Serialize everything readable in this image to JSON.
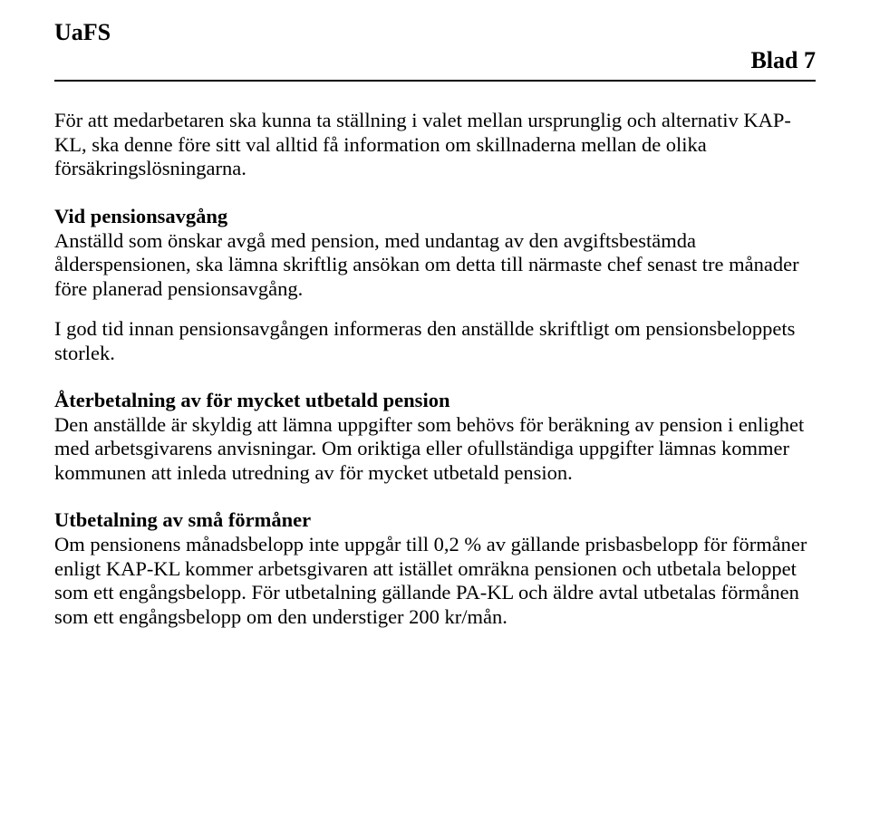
{
  "header": {
    "series": "UaFS",
    "page_label": "Blad 7"
  },
  "paragraphs": {
    "intro": "För att medarbetaren ska kunna ta ställning i valet mellan ursprunglig och alternativ KAP-KL, ska denne före sitt val alltid få information om skillnaderna mellan de olika försäkringslösningarna."
  },
  "sections": {
    "s1": {
      "title": "Vid pensionsavgång",
      "p1": "Anställd som önskar avgå med pension, med undantag av den avgiftsbestämda ålderspensionen, ska lämna skriftlig ansökan om detta till närmaste chef senast tre månader före planerad pensionsavgång.",
      "p2": "I god tid innan pensionsavgången informeras den anställde skriftligt om pensionsbeloppets storlek."
    },
    "s2": {
      "title": "Återbetalning av för mycket utbetald pension",
      "p1": "Den anställde är skyldig att lämna uppgifter som behövs för beräkning av pension i enlighet med arbetsgivarens anvisningar. Om oriktiga eller ofullständiga uppgifter lämnas kommer kommunen att inleda utredning av för mycket utbetald pension."
    },
    "s3": {
      "title": "Utbetalning av små förmåner",
      "p1": "Om pensionens månadsbelopp inte uppgår till 0,2 % av gällande prisbasbelopp för förmåner enligt KAP-KL kommer arbetsgivaren att istället omräkna pensionen och utbetala beloppet som ett engångsbelopp. För utbetalning gällande PA-KL och äldre avtal utbetalas förmånen som ett engångsbelopp om den understiger 200 kr/mån."
    }
  }
}
